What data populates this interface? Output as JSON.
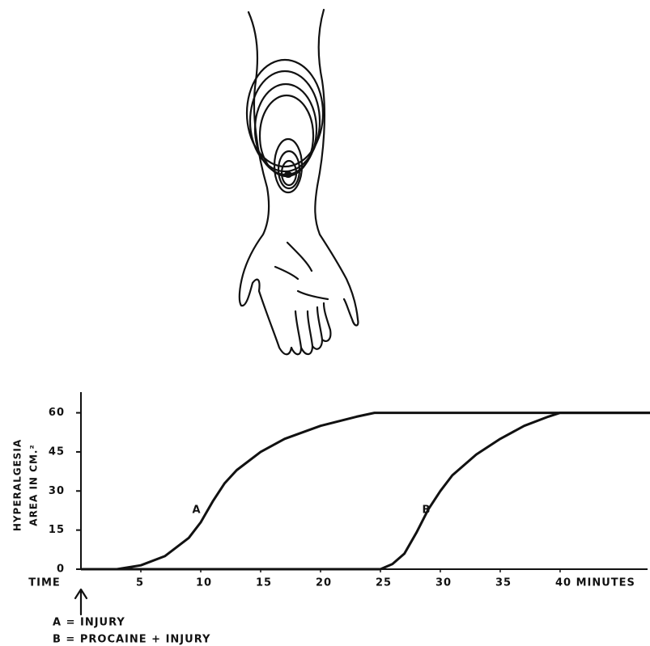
{
  "chart_data": {
    "type": "line",
    "xlabel": "TIME",
    "ylabel": [
      "HYPERALGESIA",
      "AREA IN CM.²"
    ],
    "series": [
      {
        "name": "A",
        "color": "#111111",
        "x": [
          0,
          3,
          5,
          7,
          9,
          10,
          11,
          12,
          13,
          15,
          17,
          20,
          23,
          24.5,
          48
        ],
        "values": [
          0,
          0,
          1.5,
          5,
          12,
          18,
          26,
          33,
          38,
          45,
          50,
          55,
          58.5,
          60,
          60
        ]
      },
      {
        "name": "B",
        "color": "#111111",
        "x": [
          0,
          25,
          26,
          27,
          28,
          29,
          30,
          31,
          33,
          35,
          37,
          39,
          40,
          48
        ],
        "values": [
          0,
          0,
          2,
          6,
          14,
          23,
          30,
          36,
          44,
          50,
          55,
          58.5,
          60,
          60
        ]
      }
    ],
    "legend": [
      "A = INJURY",
      "B = PROCAINE + INJURY"
    ],
    "xlim": [
      0,
      47.3
    ],
    "ylim": [
      0,
      67
    ],
    "xticks": [
      5,
      10,
      15,
      20,
      25,
      30,
      35,
      {
        "value": 40,
        "label": "40 MINUTES"
      }
    ],
    "yticks": [
      0,
      15,
      30,
      45,
      60
    ]
  }
}
